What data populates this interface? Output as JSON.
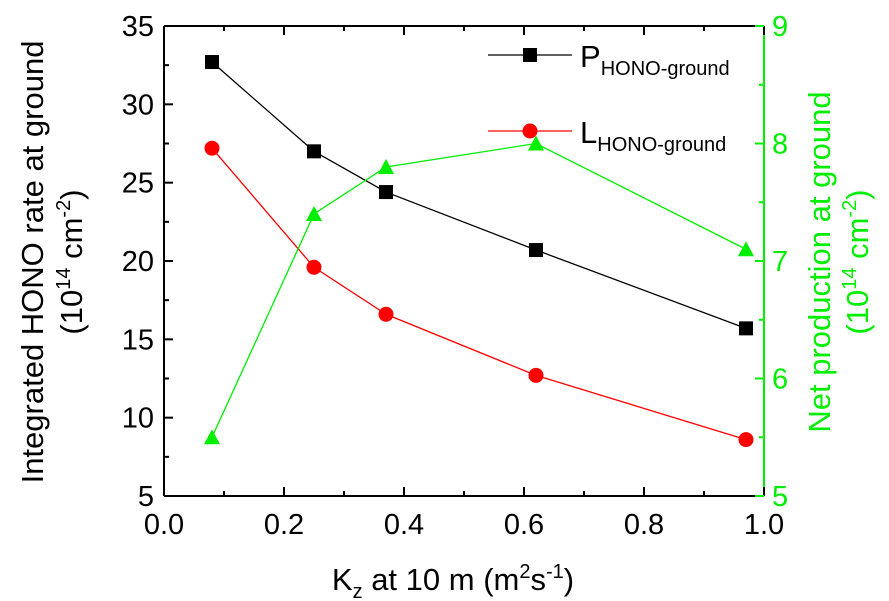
{
  "chart_data": {
    "type": "line",
    "x": [
      0.08,
      0.25,
      0.37,
      0.62,
      0.97
    ],
    "xlim": [
      0.0,
      1.0
    ],
    "xticks": [
      "0.0",
      "0.2",
      "0.4",
      "0.6",
      "0.8",
      "1.0"
    ],
    "xlabel": {
      "main": "K",
      "sub": "z",
      "rest": " at 10 m (m",
      "sup": "2",
      "rest2": "s",
      "sup2": "-1",
      "end": ")"
    },
    "ylim_left": [
      5,
      35
    ],
    "yticks_left": [
      "5",
      "10",
      "15",
      "20",
      "25",
      "30",
      "35"
    ],
    "ylabel_left": {
      "line1": "Integrated HONO rate at ground",
      "line2_pre": "(10",
      "line2_sup": "14",
      "line2_mid": " cm",
      "line2_sup2": "-2",
      "line2_end": ")"
    },
    "ylim_right": [
      5,
      9
    ],
    "yticks_right": [
      "5",
      "6",
      "7",
      "8",
      "9"
    ],
    "ylabel_right": {
      "line1": "Net production at ground",
      "line2_pre": "(10",
      "line2_sup": "14",
      "line2_mid": " cm",
      "line2_sup2": "-2",
      "line2_end": ")"
    },
    "series": [
      {
        "name": "P",
        "name_sub": "HONO-ground",
        "axis": "left",
        "color": "#000000",
        "marker": "square",
        "values": [
          32.7,
          27.0,
          24.4,
          20.7,
          15.7
        ]
      },
      {
        "name": "L",
        "name_sub": "HONO-ground",
        "axis": "left",
        "color": "#ff0000",
        "marker": "circle",
        "values": [
          27.2,
          19.6,
          16.6,
          12.7,
          8.6
        ]
      },
      {
        "axis": "right",
        "color": "#00ee00",
        "marker": "triangle",
        "values": [
          5.5,
          7.4,
          7.8,
          8.0,
          7.1
        ]
      }
    ],
    "legend_position": "top-right",
    "grid": false
  }
}
